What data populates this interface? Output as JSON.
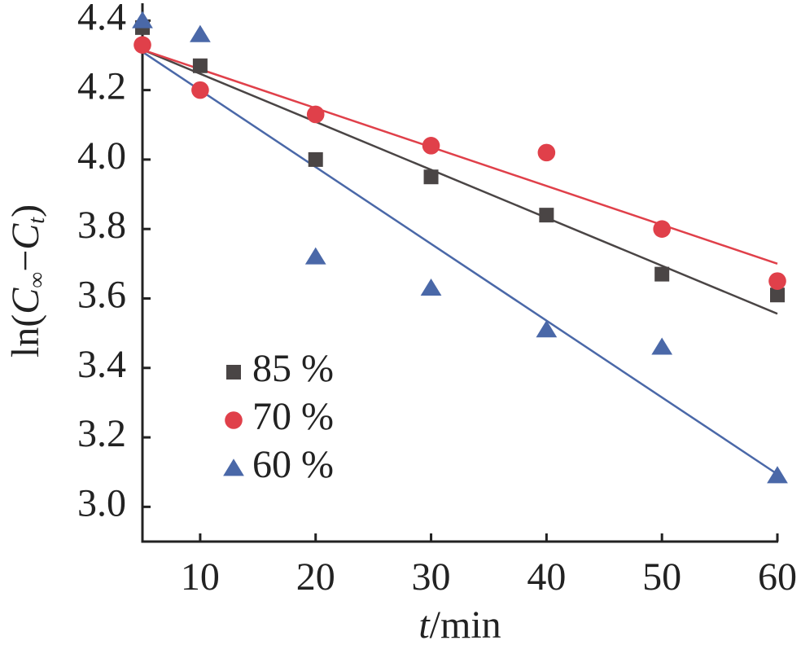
{
  "chart_data": {
    "type": "scatter",
    "x_label_parts": [
      "t",
      "/min"
    ],
    "y_label_parts": [
      "ln(",
      "C",
      "∞",
      "−",
      "C",
      "t",
      ")"
    ],
    "x": [
      5,
      10,
      20,
      30,
      40,
      50,
      60
    ],
    "xlim": [
      5,
      60
    ],
    "xticks": [
      10,
      20,
      30,
      40,
      50,
      60
    ],
    "ylim": [
      2.9,
      4.45
    ],
    "yticks": [
      {
        "value": 3.0,
        "label": "3.0"
      },
      3.2,
      3.4,
      3.6,
      3.8,
      {
        "value": 4.0,
        "label": "4.0"
      },
      4.2,
      4.4
    ],
    "legend": "lower-left",
    "series": [
      {
        "name": "85 %",
        "color": "#4a4545",
        "marker": "square",
        "values": [
          4.38,
          4.27,
          4.0,
          3.95,
          3.84,
          3.67,
          3.61
        ],
        "fit": {
          "x": [
            5,
            60
          ],
          "values": [
            4.316,
            3.556
          ]
        }
      },
      {
        "name": "70 %",
        "color": "#e0404a",
        "marker": "circle",
        "values": [
          4.33,
          4.2,
          4.13,
          4.04,
          4.02,
          3.8,
          3.65
        ],
        "fit": {
          "x": [
            5,
            60
          ],
          "values": [
            4.316,
            3.7
          ]
        }
      },
      {
        "name": "60 %",
        "color": "#4a68a8",
        "marker": "triangle",
        "values": [
          4.4,
          4.36,
          3.72,
          3.63,
          3.51,
          3.46,
          3.09
        ],
        "fit": {
          "x": [
            5,
            60
          ],
          "values": [
            4.31,
            3.094
          ]
        }
      }
    ]
  }
}
